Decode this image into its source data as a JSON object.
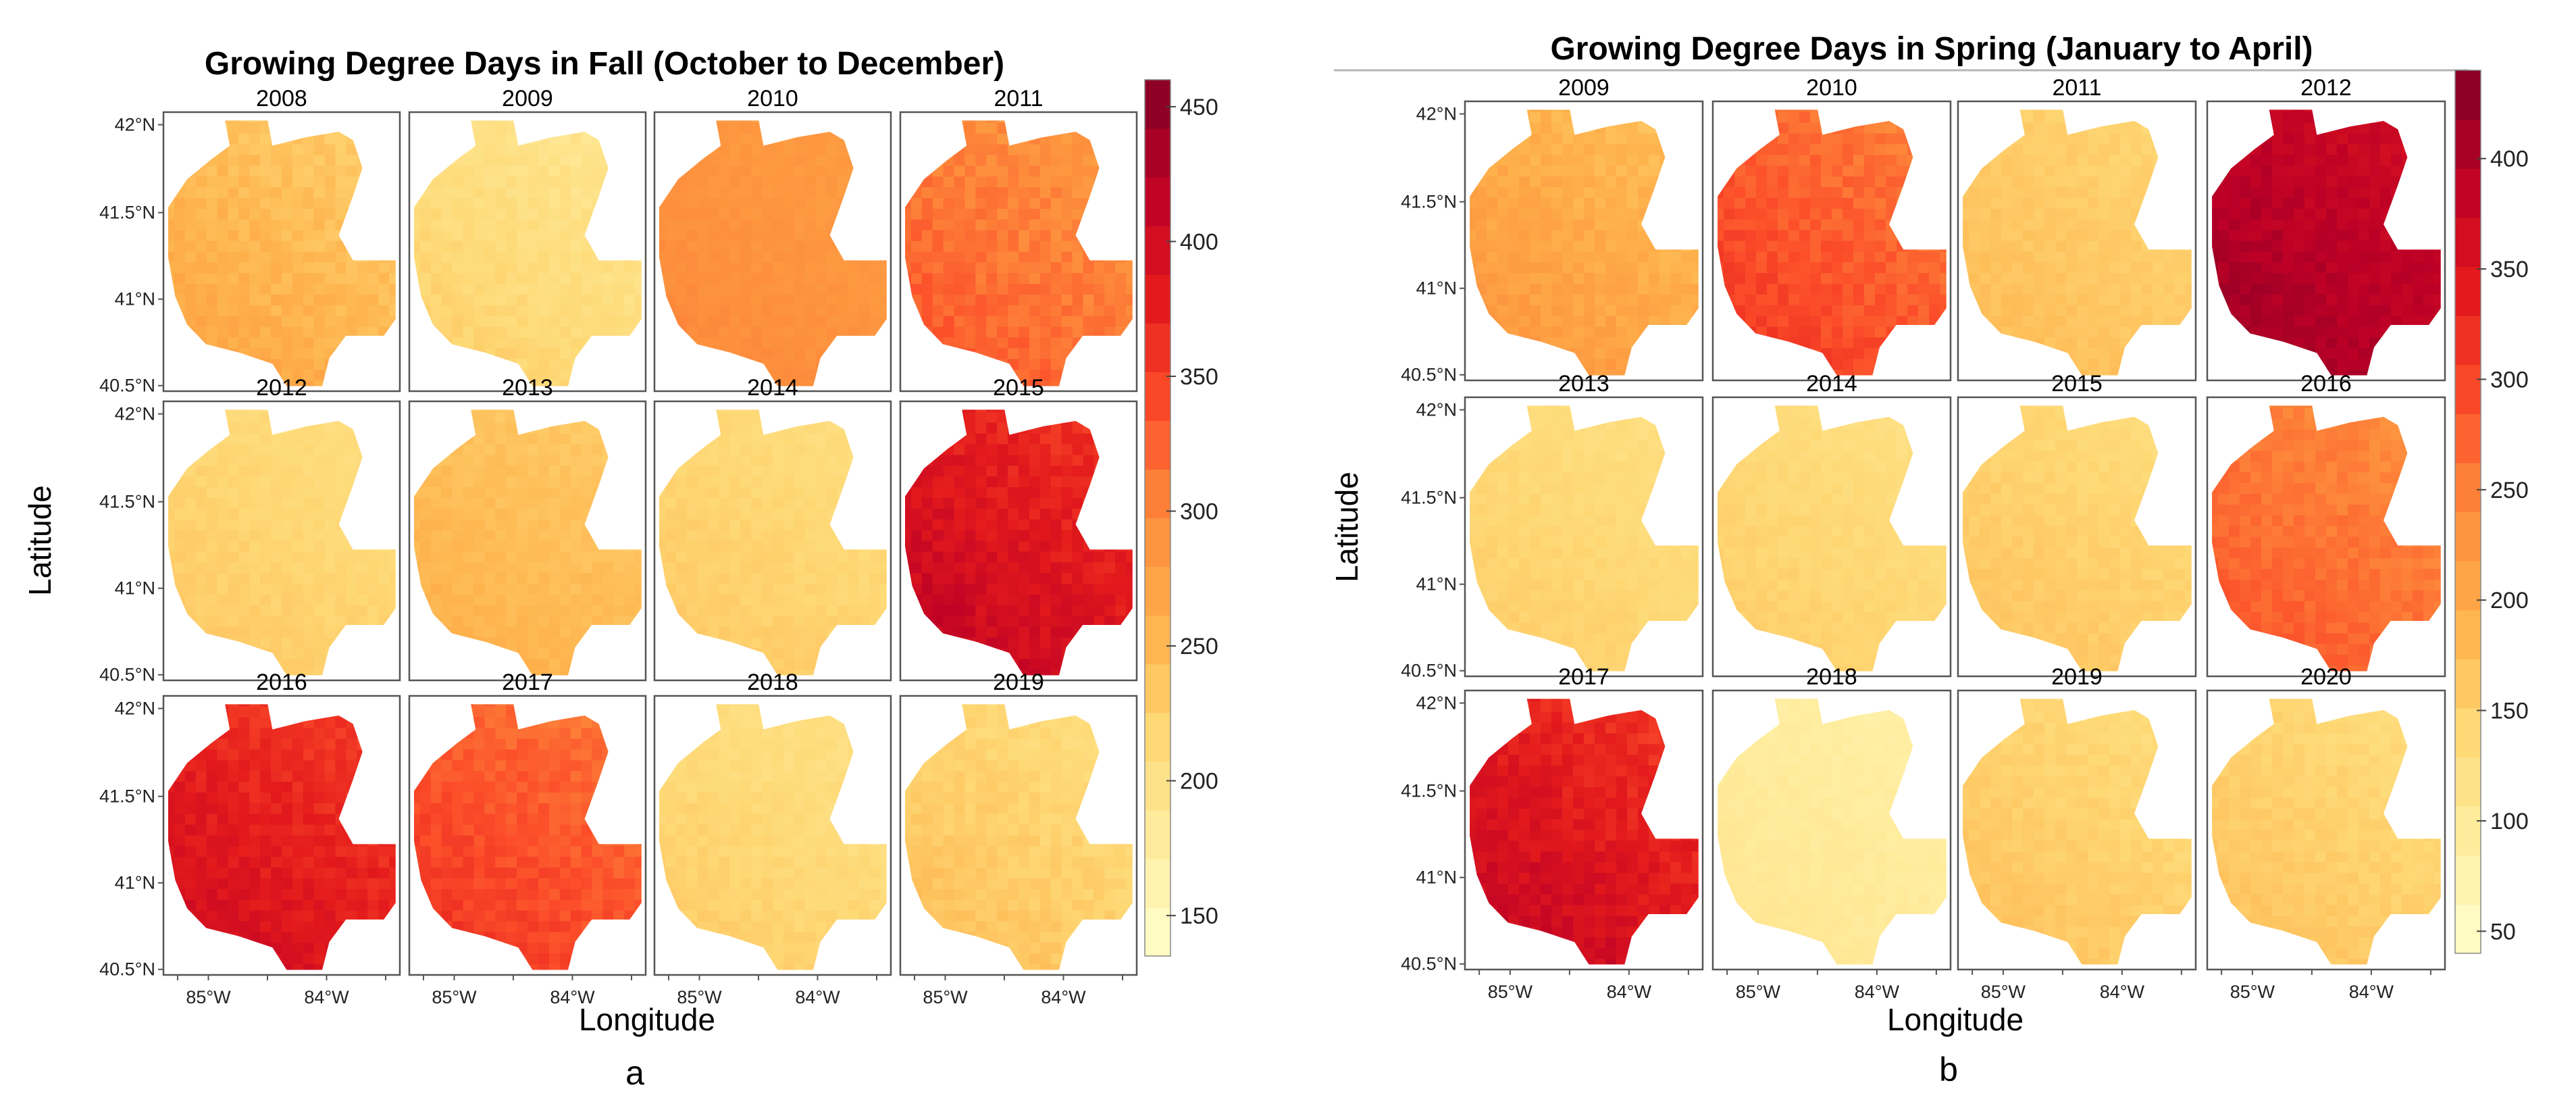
{
  "chart_data": [
    {
      "type": "heatmap",
      "title": "Growing Degree Days in Fall (October to December)",
      "xlabel": "Longitude",
      "ylabel": "Latitude",
      "x_ticks": [
        "85°W",
        "84°W"
      ],
      "y_ticks": [
        "42°N",
        "41.5°N",
        "41°N",
        "40.5°N"
      ],
      "colorbar": {
        "range": [
          135,
          460
        ],
        "ticks": [
          150,
          200,
          250,
          300,
          350,
          400,
          450
        ]
      },
      "panels": [
        {
          "label": "2008",
          "value": 250,
          "variation": 22
        },
        {
          "label": "2009",
          "value": 208,
          "variation": 18
        },
        {
          "label": "2010",
          "value": 290,
          "variation": 10
        },
        {
          "label": "2011",
          "value": 310,
          "variation": 25
        },
        {
          "label": "2012",
          "value": 220,
          "variation": 12
        },
        {
          "label": "2013",
          "value": 245,
          "variation": 14
        },
        {
          "label": "2014",
          "value": 220,
          "variation": 12
        },
        {
          "label": "2015",
          "value": 385,
          "variation": 28
        },
        {
          "label": "2016",
          "value": 375,
          "variation": 24
        },
        {
          "label": "2017",
          "value": 335,
          "variation": 24
        },
        {
          "label": "2018",
          "value": 215,
          "variation": 14
        },
        {
          "label": "2019",
          "value": 225,
          "variation": 18
        }
      ],
      "figure_label": "a"
    },
    {
      "type": "heatmap",
      "title": "Growing Degree Days in Spring (January to April)",
      "xlabel": "Longitude",
      "ylabel": "Latitude",
      "x_ticks": [
        "85°W",
        "84°W"
      ],
      "y_ticks": [
        "42°N",
        "41.5°N",
        "41°N",
        "40.5°N"
      ],
      "colorbar": {
        "range": [
          40,
          440
        ],
        "ticks": [
          50,
          100,
          150,
          200,
          250,
          300,
          350,
          400
        ]
      },
      "panels": [
        {
          "label": "2009",
          "value": 200,
          "variation": 26
        },
        {
          "label": "2010",
          "value": 280,
          "variation": 30
        },
        {
          "label": "2011",
          "value": 160,
          "variation": 16
        },
        {
          "label": "2012",
          "value": 390,
          "variation": 24
        },
        {
          "label": "2013",
          "value": 140,
          "variation": 14
        },
        {
          "label": "2014",
          "value": 140,
          "variation": 14
        },
        {
          "label": "2015",
          "value": 150,
          "variation": 16
        },
        {
          "label": "2016",
          "value": 260,
          "variation": 24
        },
        {
          "label": "2017",
          "value": 345,
          "variation": 34
        },
        {
          "label": "2018",
          "value": 95,
          "variation": 12
        },
        {
          "label": "2019",
          "value": 150,
          "variation": 18
        },
        {
          "label": "2020",
          "value": 150,
          "variation": 18
        }
      ],
      "figure_label": "b"
    }
  ]
}
